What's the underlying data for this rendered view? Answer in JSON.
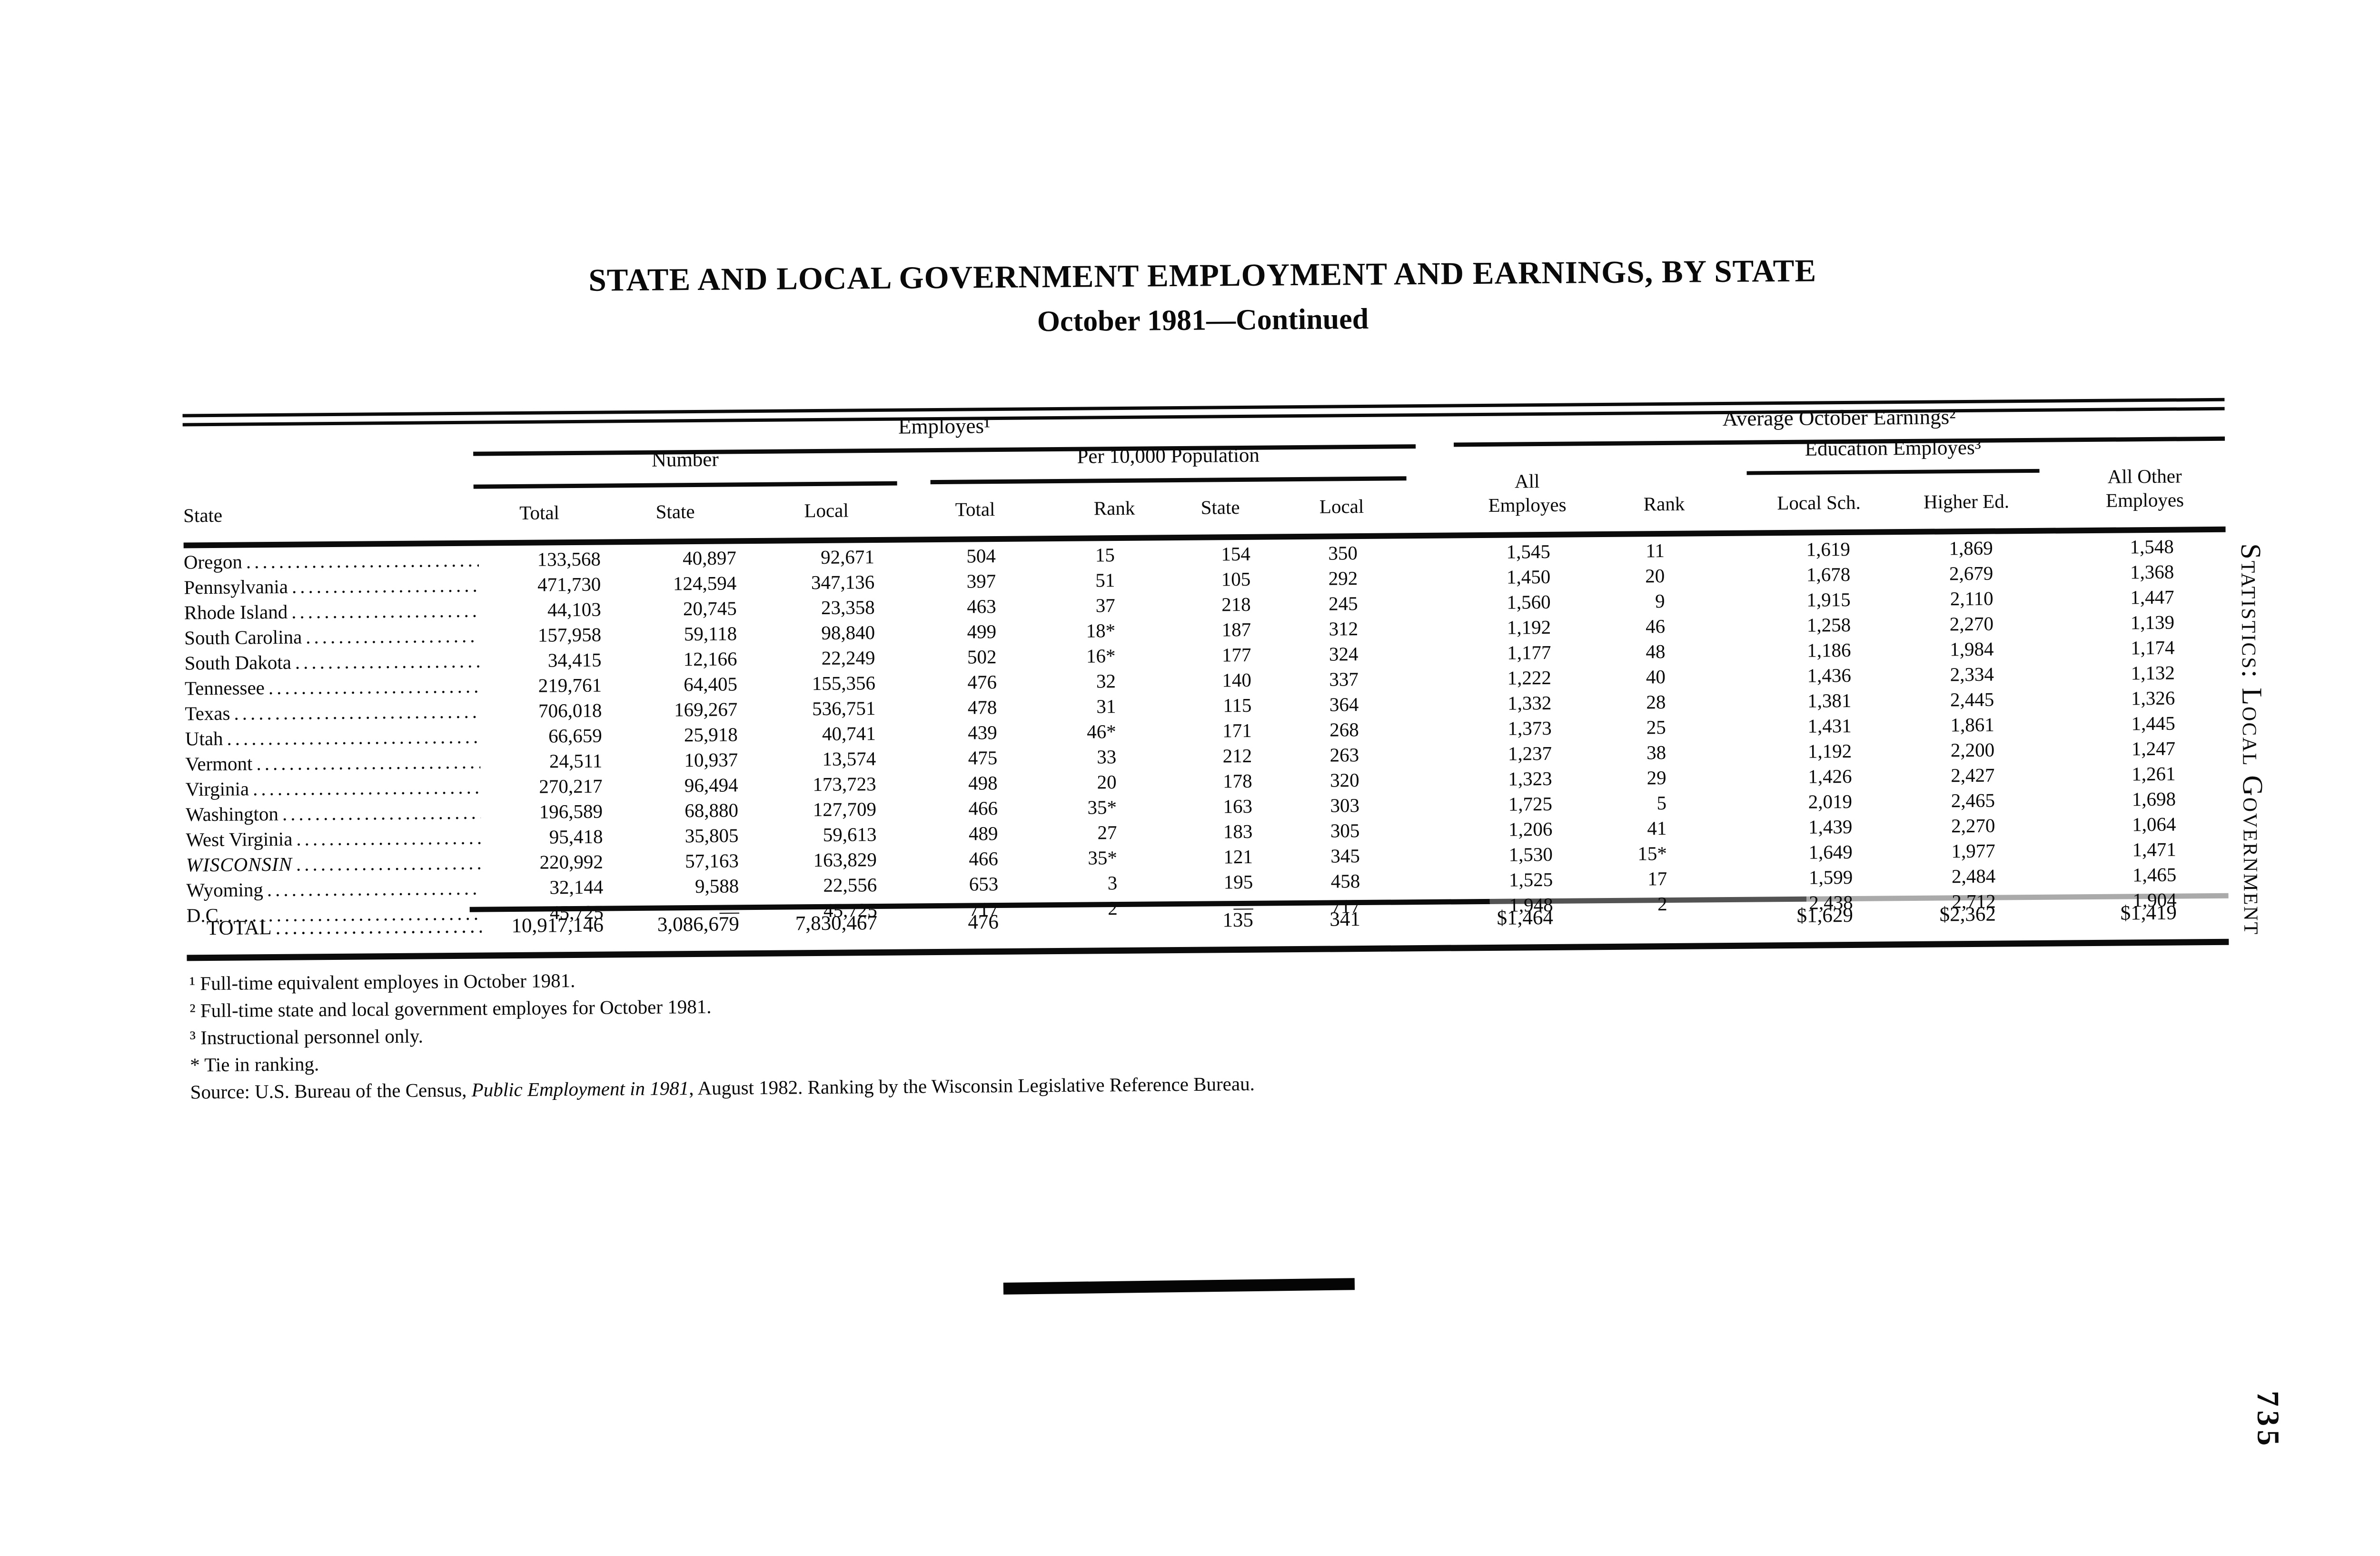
{
  "page": {
    "title_line1": "STATE AND LOCAL GOVERNMENT EMPLOYMENT AND EARNINGS, BY STATE",
    "title_line2": "October 1981—Continued",
    "sidebar_caption": "Statistics: Local Government",
    "page_number": "735"
  },
  "table": {
    "group_headers": {
      "employes": "Employes¹",
      "avg_earnings": "Average October Earnings²",
      "number": "Number",
      "per_10000": "Per 10,000 Population",
      "education": "Education Employes³"
    },
    "columns": {
      "state": "State",
      "num_total": "Total",
      "num_state": "State",
      "num_local": "Local",
      "pop_total": "Total",
      "pop_rank": "Rank",
      "pop_state": "State",
      "pop_local": "Local",
      "all_employes": "All\nEmployes",
      "earn_rank": "Rank",
      "local_sch": "Local Sch.",
      "higher_ed": "Higher Ed.",
      "all_other": "All Other\nEmployes"
    },
    "rows": [
      {
        "state": "Oregon",
        "italic": false,
        "values": [
          "133,568",
          "40,897",
          "92,671",
          "504",
          "15",
          "154",
          "350",
          "1,545",
          "11",
          "1,619",
          "1,869",
          "1,548"
        ]
      },
      {
        "state": "Pennsylvania",
        "italic": false,
        "values": [
          "471,730",
          "124,594",
          "347,136",
          "397",
          "51",
          "105",
          "292",
          "1,450",
          "20",
          "1,678",
          "2,679",
          "1,368"
        ]
      },
      {
        "state": "Rhode Island",
        "italic": false,
        "values": [
          "44,103",
          "20,745",
          "23,358",
          "463",
          "37",
          "218",
          "245",
          "1,560",
          "9",
          "1,915",
          "2,110",
          "1,447"
        ]
      },
      {
        "state": "South Carolina",
        "italic": false,
        "values": [
          "157,958",
          "59,118",
          "98,840",
          "499",
          "18*",
          "187",
          "312",
          "1,192",
          "46",
          "1,258",
          "2,270",
          "1,139"
        ]
      },
      {
        "state": "South Dakota",
        "italic": false,
        "values": [
          "34,415",
          "12,166",
          "22,249",
          "502",
          "16*",
          "177",
          "324",
          "1,177",
          "48",
          "1,186",
          "1,984",
          "1,174"
        ]
      },
      {
        "state": "Tennessee",
        "italic": false,
        "values": [
          "219,761",
          "64,405",
          "155,356",
          "476",
          "32",
          "140",
          "337",
          "1,222",
          "40",
          "1,436",
          "2,334",
          "1,132"
        ]
      },
      {
        "state": "Texas",
        "italic": false,
        "values": [
          "706,018",
          "169,267",
          "536,751",
          "478",
          "31",
          "115",
          "364",
          "1,332",
          "28",
          "1,381",
          "2,445",
          "1,326"
        ]
      },
      {
        "state": "Utah",
        "italic": false,
        "values": [
          "66,659",
          "25,918",
          "40,741",
          "439",
          "46*",
          "171",
          "268",
          "1,373",
          "25",
          "1,431",
          "1,861",
          "1,445"
        ]
      },
      {
        "state": "Vermont",
        "italic": false,
        "values": [
          "24,511",
          "10,937",
          "13,574",
          "475",
          "33",
          "212",
          "263",
          "1,237",
          "38",
          "1,192",
          "2,200",
          "1,247"
        ]
      },
      {
        "state": "Virginia",
        "italic": false,
        "values": [
          "270,217",
          "96,494",
          "173,723",
          "498",
          "20",
          "178",
          "320",
          "1,323",
          "29",
          "1,426",
          "2,427",
          "1,261"
        ]
      },
      {
        "state": "Washington",
        "italic": false,
        "values": [
          "196,589",
          "68,880",
          "127,709",
          "466",
          "35*",
          "163",
          "303",
          "1,725",
          "5",
          "2,019",
          "2,465",
          "1,698"
        ]
      },
      {
        "state": "West Virginia",
        "italic": false,
        "values": [
          "95,418",
          "35,805",
          "59,613",
          "489",
          "27",
          "183",
          "305",
          "1,206",
          "41",
          "1,439",
          "2,270",
          "1,064"
        ]
      },
      {
        "state": "WISCONSIN",
        "italic": true,
        "values": [
          "220,992",
          "57,163",
          "163,829",
          "466",
          "35*",
          "121",
          "345",
          "1,530",
          "15*",
          "1,649",
          "1,977",
          "1,471"
        ]
      },
      {
        "state": "Wyoming",
        "italic": false,
        "values": [
          "32,144",
          "9,588",
          "22,556",
          "653",
          "3",
          "195",
          "458",
          "1,525",
          "17",
          "1,599",
          "2,484",
          "1,465"
        ]
      },
      {
        "state": "D.C.",
        "italic": false,
        "values": [
          "45,725",
          "—",
          "45,725",
          "717",
          "2",
          "—",
          "717",
          "1,948",
          "2",
          "2,438",
          "2,712",
          "1,904"
        ]
      }
    ],
    "total_row": {
      "label": "TOTAL",
      "values": [
        "10,917,146",
        "3,086,679",
        "7,830,467",
        "476",
        "",
        "135",
        "341",
        "$1,464",
        "",
        "$1,629",
        "$2,362",
        "$1,419"
      ]
    }
  },
  "footnotes": [
    "¹ Full-time equivalent employes in October 1981.",
    "² Full-time state and local government employes for October 1981.",
    "³ Instructional personnel only.",
    "* Tie in ranking."
  ],
  "source": {
    "prefix": "Source: U.S. Bureau of the Census, ",
    "italic": "Public Employment in 1981",
    "suffix": ", August 1982. Ranking by the Wisconsin Legislative Reference Bureau."
  }
}
